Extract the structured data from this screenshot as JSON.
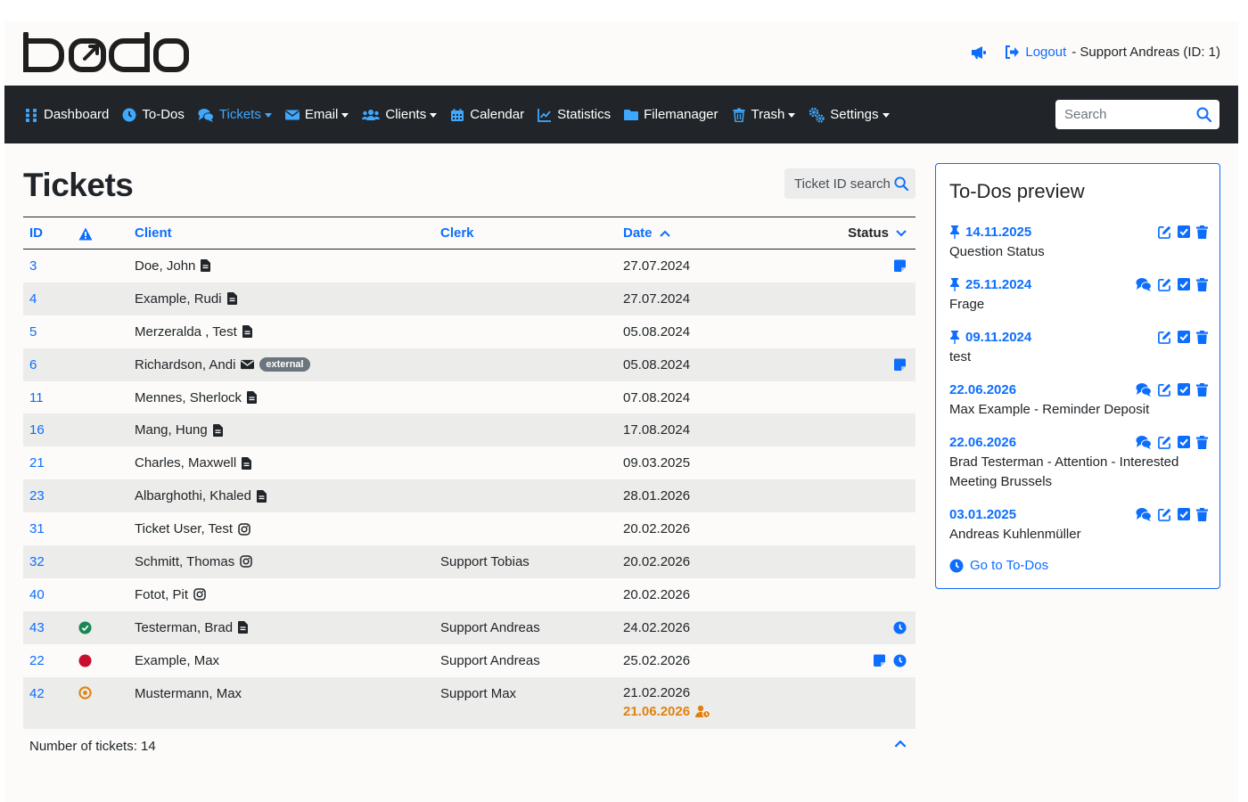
{
  "app": {
    "logo_text": "bodo"
  },
  "header": {
    "logout_label": "Logout",
    "user_label": "- Support Andreas (ID: 1)"
  },
  "nav": {
    "items": [
      {
        "label": "Dashboard",
        "icon": "grid-icon",
        "dropdown": false,
        "active": false
      },
      {
        "label": "To-Dos",
        "icon": "clock-icon",
        "dropdown": false,
        "active": false
      },
      {
        "label": "Tickets",
        "icon": "comments-icon",
        "dropdown": true,
        "active": true
      },
      {
        "label": "Email",
        "icon": "envelope-icon",
        "dropdown": true,
        "active": false
      },
      {
        "label": "Clients",
        "icon": "users-icon",
        "dropdown": true,
        "active": false
      },
      {
        "label": "Calendar",
        "icon": "calendar-icon",
        "dropdown": false,
        "active": false
      },
      {
        "label": "Statistics",
        "icon": "chart-line-icon",
        "dropdown": false,
        "active": false
      },
      {
        "label": "Filemanager",
        "icon": "folder-icon",
        "dropdown": false,
        "active": false
      },
      {
        "label": "Trash",
        "icon": "trash-icon",
        "dropdown": true,
        "active": false
      },
      {
        "label": "Settings",
        "icon": "gears-icon",
        "dropdown": true,
        "active": false
      }
    ],
    "search_placeholder": "Search"
  },
  "main": {
    "title": "Tickets",
    "ticket_id_search_label": "Ticket ID search",
    "columns": {
      "id": "ID",
      "client": "Client",
      "clerk": "Clerk",
      "date": "Date",
      "status": "Status"
    },
    "rows": [
      {
        "id": "3",
        "warn": "",
        "client": "Doe, John",
        "client_icon": "file-icon",
        "badge": "",
        "clerk": "",
        "date": "27.07.2024",
        "due": "",
        "status_icons": [
          "note-icon"
        ]
      },
      {
        "id": "4",
        "warn": "",
        "client": "Example, Rudi",
        "client_icon": "file-icon",
        "badge": "",
        "clerk": "",
        "date": "27.07.2024",
        "due": "",
        "status_icons": []
      },
      {
        "id": "5",
        "warn": "",
        "client": "Merzeralda , Test",
        "client_icon": "file-icon",
        "badge": "",
        "clerk": "",
        "date": "05.08.2024",
        "due": "",
        "status_icons": []
      },
      {
        "id": "6",
        "warn": "",
        "client": "Richardson, Andi",
        "client_icon": "envelope-icon",
        "badge": "external",
        "clerk": "",
        "date": "05.08.2024",
        "due": "",
        "status_icons": [
          "note-icon"
        ]
      },
      {
        "id": "11",
        "warn": "",
        "client": "Mennes, Sherlock",
        "client_icon": "file-icon",
        "badge": "",
        "clerk": "",
        "date": "07.08.2024",
        "due": "",
        "status_icons": []
      },
      {
        "id": "16",
        "warn": "",
        "client": "Mang, Hung",
        "client_icon": "file-icon",
        "badge": "",
        "clerk": "",
        "date": "17.08.2024",
        "due": "",
        "status_icons": []
      },
      {
        "id": "21",
        "warn": "",
        "client": "Charles, Maxwell",
        "client_icon": "file-icon",
        "badge": "",
        "clerk": "",
        "date": "09.03.2025",
        "due": "",
        "status_icons": []
      },
      {
        "id": "23",
        "warn": "",
        "client": "Albarghothi, Khaled",
        "client_icon": "file-icon",
        "badge": "",
        "clerk": "",
        "date": "28.01.2026",
        "due": "",
        "status_icons": []
      },
      {
        "id": "31",
        "warn": "",
        "client": "Ticket User, Test",
        "client_icon": "instagram-icon",
        "badge": "",
        "clerk": "",
        "date": "20.02.2026",
        "due": "",
        "status_icons": []
      },
      {
        "id": "32",
        "warn": "",
        "client": "Schmitt, Thomas",
        "client_icon": "instagram-icon",
        "badge": "",
        "clerk": "Support Tobias",
        "date": "20.02.2026",
        "due": "",
        "status_icons": []
      },
      {
        "id": "40",
        "warn": "",
        "client": "Fotot, Pit",
        "client_icon": "instagram-icon",
        "badge": "",
        "clerk": "",
        "date": "20.02.2026",
        "due": "",
        "status_icons": []
      },
      {
        "id": "43",
        "warn": "green-check",
        "client": "Testerman, Brad",
        "client_icon": "file-icon",
        "badge": "",
        "clerk": "Support Andreas",
        "date": "24.02.2026",
        "due": "",
        "status_icons": [
          "clock-icon"
        ]
      },
      {
        "id": "22",
        "warn": "red-dot",
        "client": "Example, Max",
        "client_icon": "",
        "badge": "",
        "clerk": "Support Andreas",
        "date": "25.02.2026",
        "due": "",
        "status_icons": [
          "note-icon",
          "clock-icon"
        ]
      },
      {
        "id": "42",
        "warn": "orange-ring",
        "client": "Mustermann, Max",
        "client_icon": "",
        "badge": "",
        "clerk": "Support Max",
        "date": "21.02.2026",
        "due": "21.06.2026",
        "status_icons": []
      }
    ],
    "count_label": "Number of tickets: 14"
  },
  "todos": {
    "title": "To-Dos preview",
    "items": [
      {
        "date": "14.11.2025",
        "pinned": true,
        "comments": false,
        "text": "Question Status"
      },
      {
        "date": "25.11.2024",
        "pinned": true,
        "comments": true,
        "text": "Frage"
      },
      {
        "date": "09.11.2024",
        "pinned": true,
        "comments": false,
        "text": "test"
      },
      {
        "date": "22.06.2026",
        "pinned": false,
        "comments": true,
        "text": "Max Example - Reminder Deposit"
      },
      {
        "date": "22.06.2026",
        "pinned": false,
        "comments": true,
        "text": "Brad Testerman - Attention - Interested Meeting Brussels"
      },
      {
        "date": "03.01.2025",
        "pinned": false,
        "comments": true,
        "text": "Andreas Kuhlenmüller"
      }
    ],
    "goto_label": "Go to To-Dos"
  },
  "colors": {
    "accent": "#0d6efd",
    "navbar": "#212529",
    "active_nav": "#3ea8ff",
    "due": "#e0820f",
    "success": "#198754",
    "danger": "#c8102e"
  }
}
